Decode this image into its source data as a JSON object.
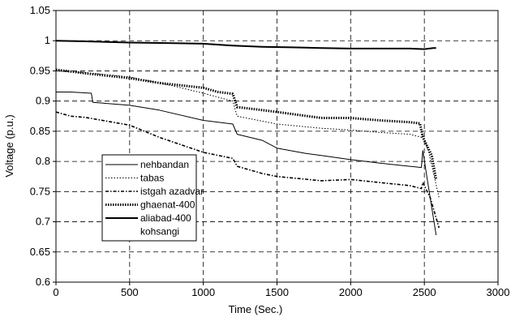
{
  "chart_data": {
    "type": "line",
    "xlabel": "Time (Sec.)",
    "ylabel": "Voltage (p.u.)",
    "xlim": [
      0,
      3000
    ],
    "ylim": [
      0.6,
      1.05
    ],
    "xticks": [
      0,
      500,
      1000,
      1500,
      2000,
      2500,
      3000
    ],
    "yticks": [
      0.6,
      0.65,
      0.7,
      0.75,
      0.8,
      0.85,
      0.9,
      0.95,
      1,
      1.05
    ],
    "xtick_labels": [
      "0",
      "500",
      "1000",
      "1500",
      "2000",
      "2500",
      "3000"
    ],
    "ytick_labels": [
      "0.6",
      "0.65",
      "0.7",
      "0.75",
      "0.8",
      "0.85",
      "0.9",
      "0.95",
      "1",
      "1.05"
    ],
    "grid": true,
    "legend_position": "lower-left",
    "series": [
      {
        "name": "nehbandan",
        "style": "solid-thin",
        "x": [
          0,
          100,
          240,
          250,
          500,
          700,
          1000,
          1200,
          1230,
          1400,
          1500,
          1700,
          1800,
          2000,
          2200,
          2400,
          2480,
          2490,
          2520,
          2580
        ],
        "y": [
          0.915,
          0.915,
          0.913,
          0.898,
          0.893,
          0.885,
          0.868,
          0.862,
          0.845,
          0.835,
          0.822,
          0.813,
          0.81,
          0.803,
          0.797,
          0.792,
          0.79,
          0.818,
          0.77,
          0.678
        ]
      },
      {
        "name": "tabas",
        "style": "dotted",
        "x": [
          0,
          200,
          500,
          800,
          1000,
          1200,
          1230,
          1500,
          1800,
          2000,
          2200,
          2400,
          2480,
          2490,
          2530,
          2600
        ],
        "y": [
          0.95,
          0.947,
          0.94,
          0.925,
          0.913,
          0.9,
          0.875,
          0.862,
          0.855,
          0.852,
          0.848,
          0.845,
          0.84,
          0.845,
          0.815,
          0.74
        ]
      },
      {
        "name": "istgah azadvar",
        "style": "dash-dot",
        "x": [
          0,
          100,
          200,
          500,
          700,
          1000,
          1200,
          1230,
          1400,
          1500,
          1800,
          2000,
          2200,
          2400,
          2480,
          2490,
          2540,
          2600
        ],
        "y": [
          0.882,
          0.875,
          0.873,
          0.86,
          0.84,
          0.815,
          0.805,
          0.792,
          0.78,
          0.775,
          0.768,
          0.77,
          0.765,
          0.76,
          0.755,
          0.765,
          0.74,
          0.69
        ]
      },
      {
        "name": "ghaenat-400",
        "style": "dotted-thick",
        "x": [
          0,
          200,
          500,
          700,
          1000,
          1100,
          1200,
          1230,
          1400,
          1500,
          1800,
          2000,
          2200,
          2400,
          2470,
          2490,
          2550,
          2580
        ],
        "y": [
          0.952,
          0.946,
          0.938,
          0.93,
          0.922,
          0.915,
          0.912,
          0.89,
          0.885,
          0.882,
          0.872,
          0.872,
          0.868,
          0.865,
          0.863,
          0.84,
          0.81,
          0.77
        ]
      },
      {
        "name": "aliabad-400",
        "style": "solid-thick",
        "x": [
          0,
          200,
          500,
          800,
          1000,
          1200,
          1400,
          1600,
          1800,
          2000,
          2200,
          2400,
          2500,
          2560,
          2580
        ],
        "y": [
          1.0,
          0.999,
          0.997,
          0.996,
          0.995,
          0.992,
          0.99,
          0.989,
          0.988,
          0.987,
          0.987,
          0.987,
          0.986,
          0.988,
          0.988
        ]
      },
      {
        "name": "kohsangi",
        "style": "none",
        "x": [],
        "y": []
      }
    ]
  }
}
